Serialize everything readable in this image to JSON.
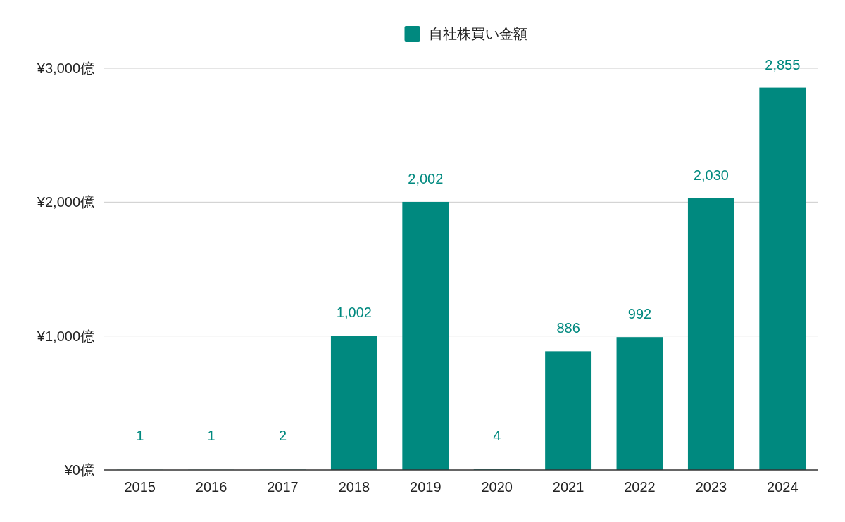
{
  "chart_data": {
    "type": "bar",
    "categories": [
      "2015",
      "2016",
      "2017",
      "2018",
      "2019",
      "2020",
      "2021",
      "2022",
      "2023",
      "2024"
    ],
    "series": [
      {
        "name": "自社株買い金額",
        "color": "#00897f",
        "values": [
          1,
          1,
          2,
          1002,
          2002,
          4,
          886,
          992,
          2030,
          2855
        ],
        "value_labels": [
          "1",
          "1",
          "2",
          "1,002",
          "2,002",
          "4",
          "886",
          "992",
          "2,030",
          "2,855"
        ]
      }
    ],
    "ylim": [
      0,
      3000
    ],
    "yticks": [
      {
        "value": 0,
        "label": "¥0億"
      },
      {
        "value": 1000,
        "label": "¥1,000億"
      },
      {
        "value": 2000,
        "label": "¥2,000億"
      },
      {
        "value": 3000,
        "label": "¥3,000億"
      }
    ],
    "grid": "y",
    "legend": "top"
  }
}
